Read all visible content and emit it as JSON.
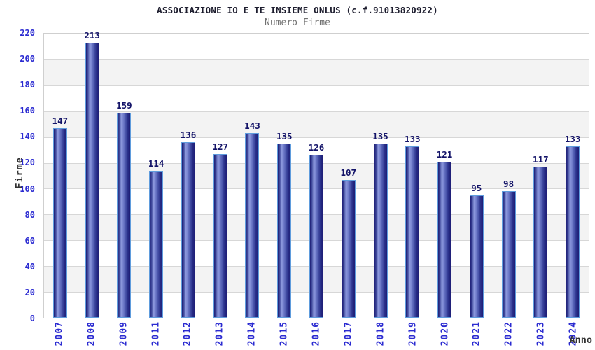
{
  "chart_data": {
    "type": "bar",
    "title": "ASSOCIAZIONE IO E TE INSIEME ONLUS (c.f.91013820922)",
    "subtitle": "Numero Firme",
    "xlabel": "Anno",
    "ylabel": "Firme",
    "categories": [
      "2007",
      "2008",
      "2009",
      "2011",
      "2012",
      "2013",
      "2014",
      "2015",
      "2016",
      "2017",
      "2018",
      "2019",
      "2020",
      "2021",
      "2022",
      "2023",
      "2024"
    ],
    "values": [
      147,
      213,
      159,
      114,
      136,
      127,
      143,
      135,
      126,
      107,
      135,
      133,
      121,
      95,
      98,
      117,
      133
    ],
    "ylim": [
      0,
      220
    ],
    "ytick_step": 20,
    "yticks": [
      0,
      20,
      40,
      60,
      80,
      100,
      120,
      140,
      160,
      180,
      200,
      220
    ],
    "grid": "horizontal-lines-with-alternating-bands",
    "legend": "none",
    "value_labels": "above-bars",
    "x_tick_rotation": -90,
    "colors": {
      "title": "#1d1d2e",
      "subtitle": "#717171",
      "tick_label": "#2b2bd1",
      "value_label": "#131368",
      "axis_label": "#333333",
      "gridline": "#d7d7d7",
      "band": "#f3f3f3",
      "plot_border": "#cfcfcf",
      "bar_dark": "#1e1e76",
      "bar_highlight": "#8e9ade",
      "bar_border": "#5f9cdd"
    }
  }
}
